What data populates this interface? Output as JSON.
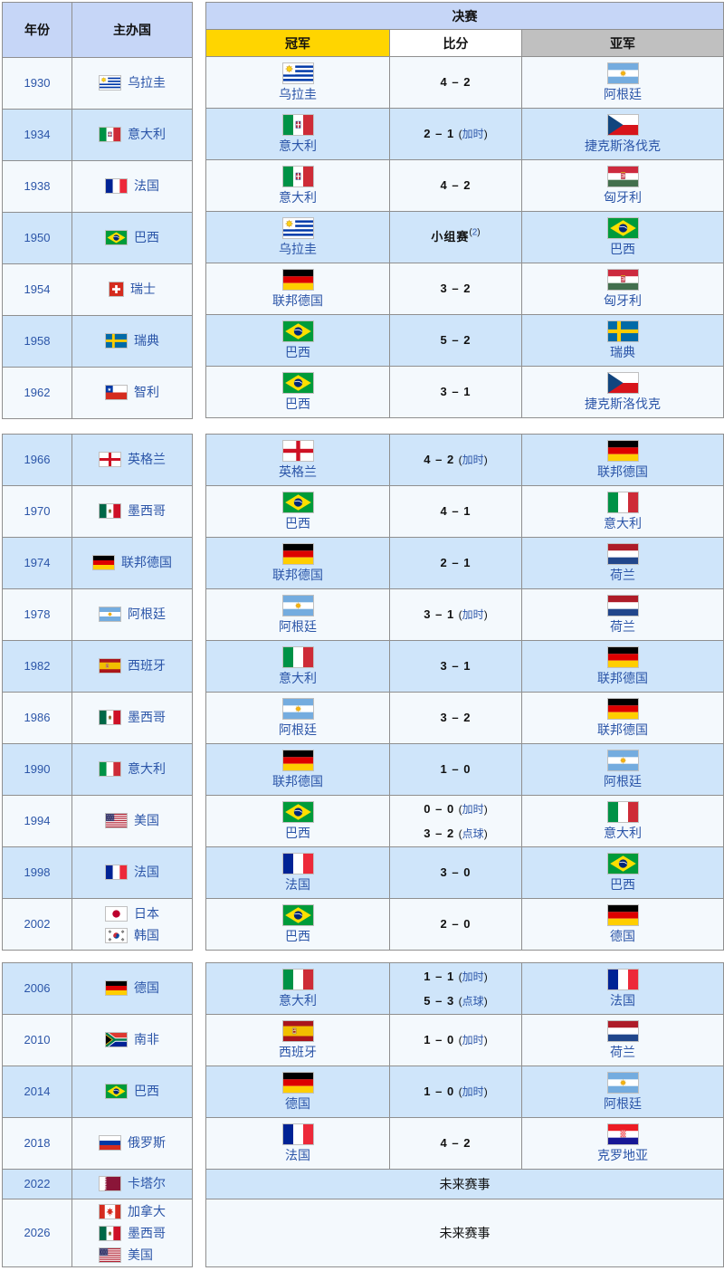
{
  "header": {
    "year": "年份",
    "host": "主办国",
    "final": "决赛",
    "champion": "冠军",
    "score": "比分",
    "runner_up": "亚军"
  },
  "labels": {
    "future": "未来赛事",
    "extra_time": "加时",
    "penalties": "点球",
    "group_stage": "小组赛"
  },
  "colors": {
    "header-blue": "#c6d6f7",
    "row-blue": "#cfe5fa",
    "row-pale": "#f4f9fd",
    "gold": "#ffd500",
    "silver": "#c0c0c0",
    "score-white": "#ffffff",
    "link": "#2b55a8",
    "border": "#8f8f8f"
  },
  "sections": [
    {
      "rows": [
        {
          "year": "1930",
          "shade": "pale",
          "hosts": [
            {
              "flag": "uruguay",
              "name": "乌拉圭"
            }
          ],
          "champion": {
            "flag": "uruguay",
            "name": "乌拉圭"
          },
          "score": {
            "lines": [
              {
                "text": "4 – 2"
              }
            ]
          },
          "runner_up": {
            "flag": "argentina",
            "name": "阿根廷"
          }
        },
        {
          "year": "1934",
          "shade": "blue",
          "hosts": [
            {
              "flag": "italy-old",
              "name": "意大利"
            }
          ],
          "champion": {
            "flag": "italy-old",
            "name": "意大利"
          },
          "score": {
            "lines": [
              {
                "text": "2 – 1",
                "note": "加时"
              }
            ]
          },
          "runner_up": {
            "flag": "czechoslovakia",
            "name": "捷克斯洛伐克"
          }
        },
        {
          "year": "1938",
          "shade": "pale",
          "hosts": [
            {
              "flag": "france",
              "name": "法国"
            }
          ],
          "champion": {
            "flag": "italy-old",
            "name": "意大利"
          },
          "score": {
            "lines": [
              {
                "text": "4 – 2"
              }
            ]
          },
          "runner_up": {
            "flag": "hungary-old",
            "name": "匈牙利"
          }
        },
        {
          "year": "1950",
          "shade": "blue",
          "hosts": [
            {
              "flag": "brazil",
              "name": "巴西"
            }
          ],
          "champion": {
            "flag": "uruguay",
            "name": "乌拉圭"
          },
          "score": {
            "lines": [
              {
                "text": "小组赛",
                "ref": "2"
              }
            ]
          },
          "runner_up": {
            "flag": "brazil",
            "name": "巴西"
          }
        },
        {
          "year": "1954",
          "shade": "pale",
          "hosts": [
            {
              "flag": "switzerland",
              "name": "瑞士"
            }
          ],
          "champion": {
            "flag": "germany",
            "name": "联邦德国"
          },
          "score": {
            "lines": [
              {
                "text": "3 – 2"
              }
            ]
          },
          "runner_up": {
            "flag": "hungary-old",
            "name": "匈牙利"
          }
        },
        {
          "year": "1958",
          "shade": "blue",
          "hosts": [
            {
              "flag": "sweden",
              "name": "瑞典"
            }
          ],
          "champion": {
            "flag": "brazil",
            "name": "巴西"
          },
          "score": {
            "lines": [
              {
                "text": "5 – 2"
              }
            ]
          },
          "runner_up": {
            "flag": "sweden",
            "name": "瑞典"
          }
        },
        {
          "year": "1962",
          "shade": "pale",
          "hosts": [
            {
              "flag": "chile",
              "name": "智利"
            }
          ],
          "champion": {
            "flag": "brazil",
            "name": "巴西"
          },
          "score": {
            "lines": [
              {
                "text": "3 – 1"
              }
            ]
          },
          "runner_up": {
            "flag": "czechoslovakia",
            "name": "捷克斯洛伐克"
          }
        }
      ]
    },
    {
      "rows": [
        {
          "year": "1966",
          "shade": "blue",
          "hosts": [
            {
              "flag": "england",
              "name": "英格兰"
            }
          ],
          "champion": {
            "flag": "england",
            "name": "英格兰"
          },
          "score": {
            "lines": [
              {
                "text": "4 – 2",
                "note": "加时"
              }
            ]
          },
          "runner_up": {
            "flag": "germany",
            "name": "联邦德国"
          }
        },
        {
          "year": "1970",
          "shade": "pale",
          "hosts": [
            {
              "flag": "mexico",
              "name": "墨西哥"
            }
          ],
          "champion": {
            "flag": "brazil",
            "name": "巴西"
          },
          "score": {
            "lines": [
              {
                "text": "4 – 1"
              }
            ]
          },
          "runner_up": {
            "flag": "italy",
            "name": "意大利"
          }
        },
        {
          "year": "1974",
          "shade": "blue",
          "hosts": [
            {
              "flag": "germany",
              "name": "联邦德国"
            }
          ],
          "champion": {
            "flag": "germany",
            "name": "联邦德国"
          },
          "score": {
            "lines": [
              {
                "text": "2 – 1"
              }
            ]
          },
          "runner_up": {
            "flag": "netherlands",
            "name": "荷兰"
          }
        },
        {
          "year": "1978",
          "shade": "pale",
          "hosts": [
            {
              "flag": "argentina",
              "name": "阿根廷"
            }
          ],
          "champion": {
            "flag": "argentina",
            "name": "阿根廷"
          },
          "score": {
            "lines": [
              {
                "text": "3 – 1",
                "note": "加时"
              }
            ]
          },
          "runner_up": {
            "flag": "netherlands",
            "name": "荷兰"
          }
        },
        {
          "year": "1982",
          "shade": "blue",
          "hosts": [
            {
              "flag": "spain",
              "name": "西班牙"
            }
          ],
          "champion": {
            "flag": "italy",
            "name": "意大利"
          },
          "score": {
            "lines": [
              {
                "text": "3 – 1"
              }
            ]
          },
          "runner_up": {
            "flag": "germany",
            "name": "联邦德国"
          }
        },
        {
          "year": "1986",
          "shade": "pale",
          "hosts": [
            {
              "flag": "mexico",
              "name": "墨西哥"
            }
          ],
          "champion": {
            "flag": "argentina",
            "name": "阿根廷"
          },
          "score": {
            "lines": [
              {
                "text": "3 – 2"
              }
            ]
          },
          "runner_up": {
            "flag": "germany",
            "name": "联邦德国"
          }
        },
        {
          "year": "1990",
          "shade": "blue",
          "hosts": [
            {
              "flag": "italy",
              "name": "意大利"
            }
          ],
          "champion": {
            "flag": "germany",
            "name": "联邦德国"
          },
          "score": {
            "lines": [
              {
                "text": "1 – 0"
              }
            ]
          },
          "runner_up": {
            "flag": "argentina",
            "name": "阿根廷"
          }
        },
        {
          "year": "1994",
          "shade": "pale",
          "hosts": [
            {
              "flag": "usa",
              "name": "美国"
            }
          ],
          "champion": {
            "flag": "brazil",
            "name": "巴西"
          },
          "score": {
            "lines": [
              {
                "text": "0 – 0",
                "note": "加时"
              },
              {
                "text": "3 – 2",
                "note": "点球"
              }
            ]
          },
          "runner_up": {
            "flag": "italy",
            "name": "意大利"
          }
        },
        {
          "year": "1998",
          "shade": "blue",
          "hosts": [
            {
              "flag": "france",
              "name": "法国"
            }
          ],
          "champion": {
            "flag": "france",
            "name": "法国"
          },
          "score": {
            "lines": [
              {
                "text": "3 – 0"
              }
            ]
          },
          "runner_up": {
            "flag": "brazil",
            "name": "巴西"
          }
        },
        {
          "year": "2002",
          "shade": "pale",
          "hosts": [
            {
              "flag": "japan",
              "name": "日本"
            },
            {
              "flag": "south-korea",
              "name": "韩国"
            }
          ],
          "champion": {
            "flag": "brazil",
            "name": "巴西"
          },
          "score": {
            "lines": [
              {
                "text": "2 – 0"
              }
            ]
          },
          "runner_up": {
            "flag": "germany",
            "name": "德国"
          }
        }
      ]
    },
    {
      "rows": [
        {
          "year": "2006",
          "shade": "blue",
          "hosts": [
            {
              "flag": "germany",
              "name": "德国"
            }
          ],
          "champion": {
            "flag": "italy",
            "name": "意大利"
          },
          "score": {
            "lines": [
              {
                "text": "1 – 1",
                "note": "加时"
              },
              {
                "text": "5 – 3",
                "note": "点球"
              }
            ]
          },
          "runner_up": {
            "flag": "france",
            "name": "法国"
          }
        },
        {
          "year": "2010",
          "shade": "pale",
          "hosts": [
            {
              "flag": "south-africa",
              "name": "南非"
            }
          ],
          "champion": {
            "flag": "spain",
            "name": "西班牙"
          },
          "score": {
            "lines": [
              {
                "text": "1 – 0",
                "note": "加时"
              }
            ]
          },
          "runner_up": {
            "flag": "netherlands",
            "name": "荷兰"
          }
        },
        {
          "year": "2014",
          "shade": "blue",
          "hosts": [
            {
              "flag": "brazil",
              "name": "巴西"
            }
          ],
          "champion": {
            "flag": "germany",
            "name": "德国"
          },
          "score": {
            "lines": [
              {
                "text": "1 – 0",
                "note": "加时"
              }
            ]
          },
          "runner_up": {
            "flag": "argentina",
            "name": "阿根廷"
          }
        },
        {
          "year": "2018",
          "shade": "pale",
          "hosts": [
            {
              "flag": "russia",
              "name": "俄罗斯"
            }
          ],
          "champion": {
            "flag": "france",
            "name": "法国"
          },
          "score": {
            "lines": [
              {
                "text": "4 – 2"
              }
            ]
          },
          "runner_up": {
            "flag": "croatia",
            "name": "克罗地亚"
          }
        },
        {
          "year": "2022",
          "shade": "blue",
          "future": true,
          "hosts": [
            {
              "flag": "qatar",
              "name": "卡塔尔"
            }
          ]
        },
        {
          "year": "2026",
          "shade": "pale",
          "future": true,
          "hosts": [
            {
              "flag": "canada",
              "name": "加拿大"
            },
            {
              "flag": "mexico",
              "name": "墨西哥"
            },
            {
              "flag": "usa",
              "name": "美国"
            }
          ]
        }
      ]
    }
  ]
}
